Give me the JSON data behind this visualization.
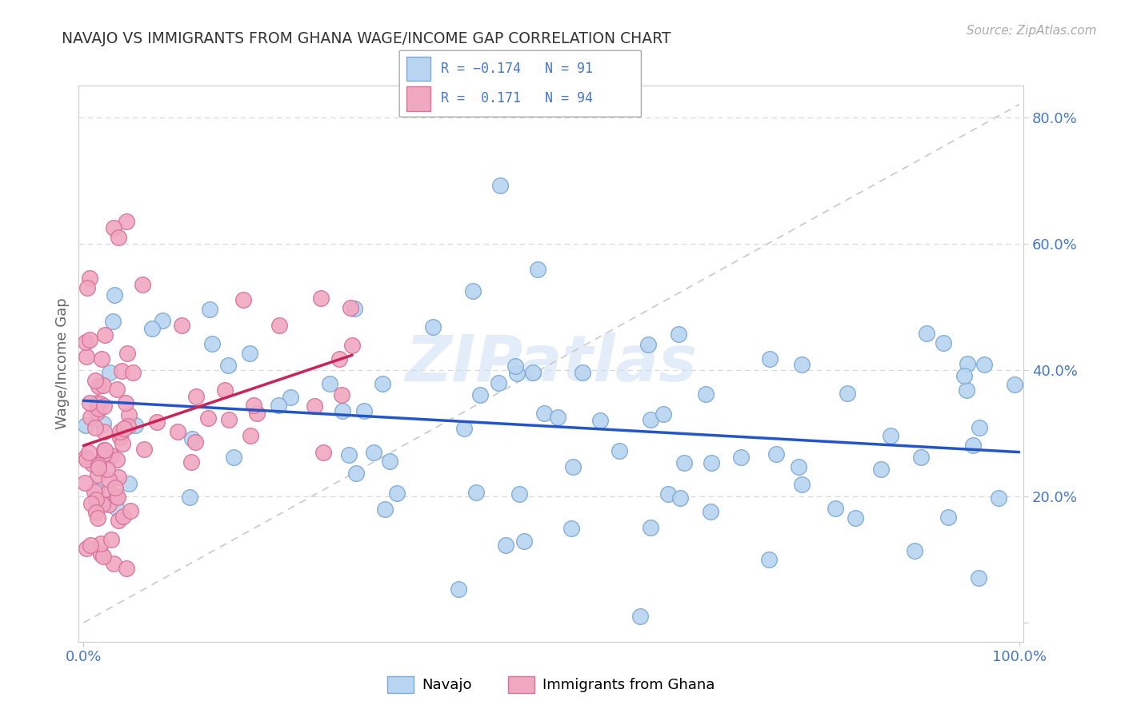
{
  "title": "NAVAJO VS IMMIGRANTS FROM GHANA WAGE/INCOME GAP CORRELATION CHART",
  "source": "Source: ZipAtlas.com",
  "ylabel": "Wage/Income Gap",
  "watermark": "ZIPatlas",
  "navajo_color": "#b8d4f0",
  "ghana_color": "#f0a8c0",
  "navajo_edge_color": "#7aa8d8",
  "ghana_edge_color": "#d87098",
  "trend_navajo_color": "#2255cc",
  "trend_ghana_color": "#cc2255",
  "background_color": "#ffffff",
  "grid_color": "#d8d8d8",
  "title_color": "#333333",
  "label_color": "#4477cc",
  "source_color": "#aaaaaa",
  "R_navajo": -0.174,
  "N_navajo": 91,
  "R_ghana": 0.171,
  "N_ghana": 94,
  "navajo_seed": 12,
  "ghana_seed": 77
}
